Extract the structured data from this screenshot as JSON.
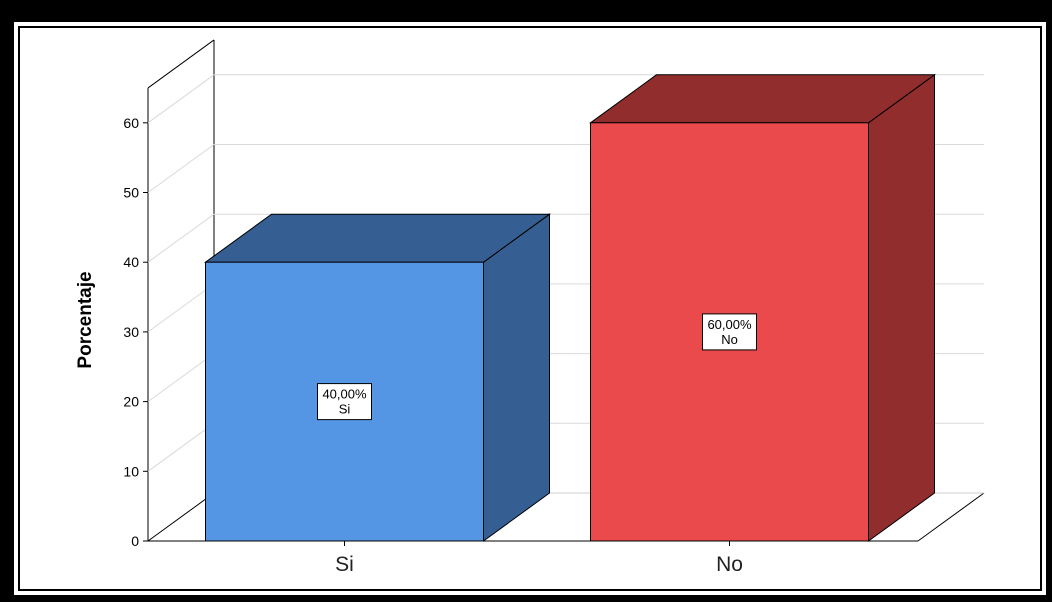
{
  "chart_data": {
    "type": "bar",
    "categories": [
      "Si",
      "No"
    ],
    "values": [
      40,
      60
    ],
    "data_labels": [
      {
        "value": "40,00%",
        "category": "Si"
      },
      {
        "value": "60,00%",
        "category": "No"
      }
    ],
    "ylabel": "Porcentaje",
    "xlabel": "",
    "ylim": [
      0,
      65
    ],
    "yticks": [
      0,
      10,
      20,
      30,
      40,
      50,
      60
    ],
    "grid": true,
    "three_d": true,
    "colors": {
      "Si": {
        "front": "#5596e4",
        "side": "#355f92",
        "top": "#355f92"
      },
      "No": {
        "front": "#eb4a4c",
        "side": "#922d2e",
        "top": "#922d2e"
      }
    }
  }
}
